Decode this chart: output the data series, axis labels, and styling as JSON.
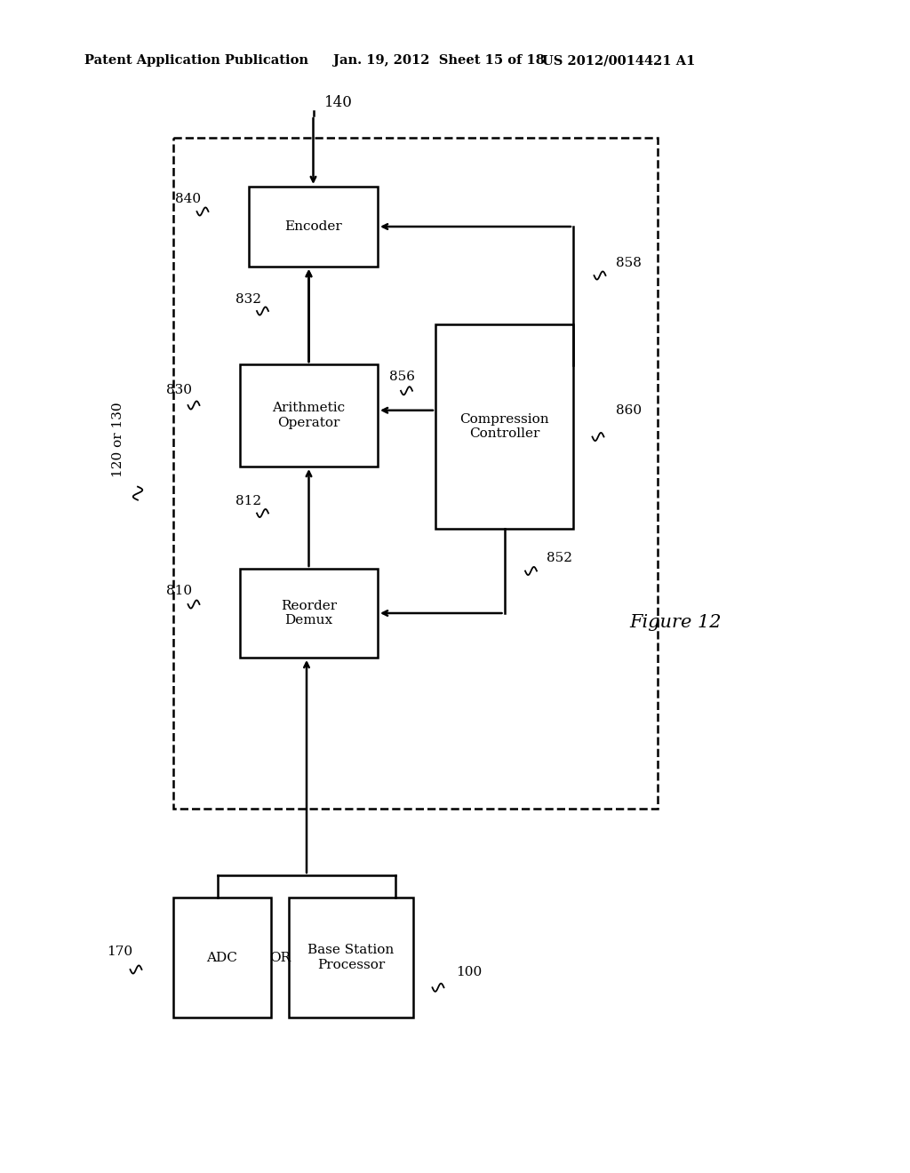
{
  "title_left": "Patent Application Publication",
  "title_mid": "Jan. 19, 2012  Sheet 15 of 18",
  "title_right": "US 2012/0014421 A1",
  "figure_label": "Figure 12",
  "bg_color": "#ffffff"
}
